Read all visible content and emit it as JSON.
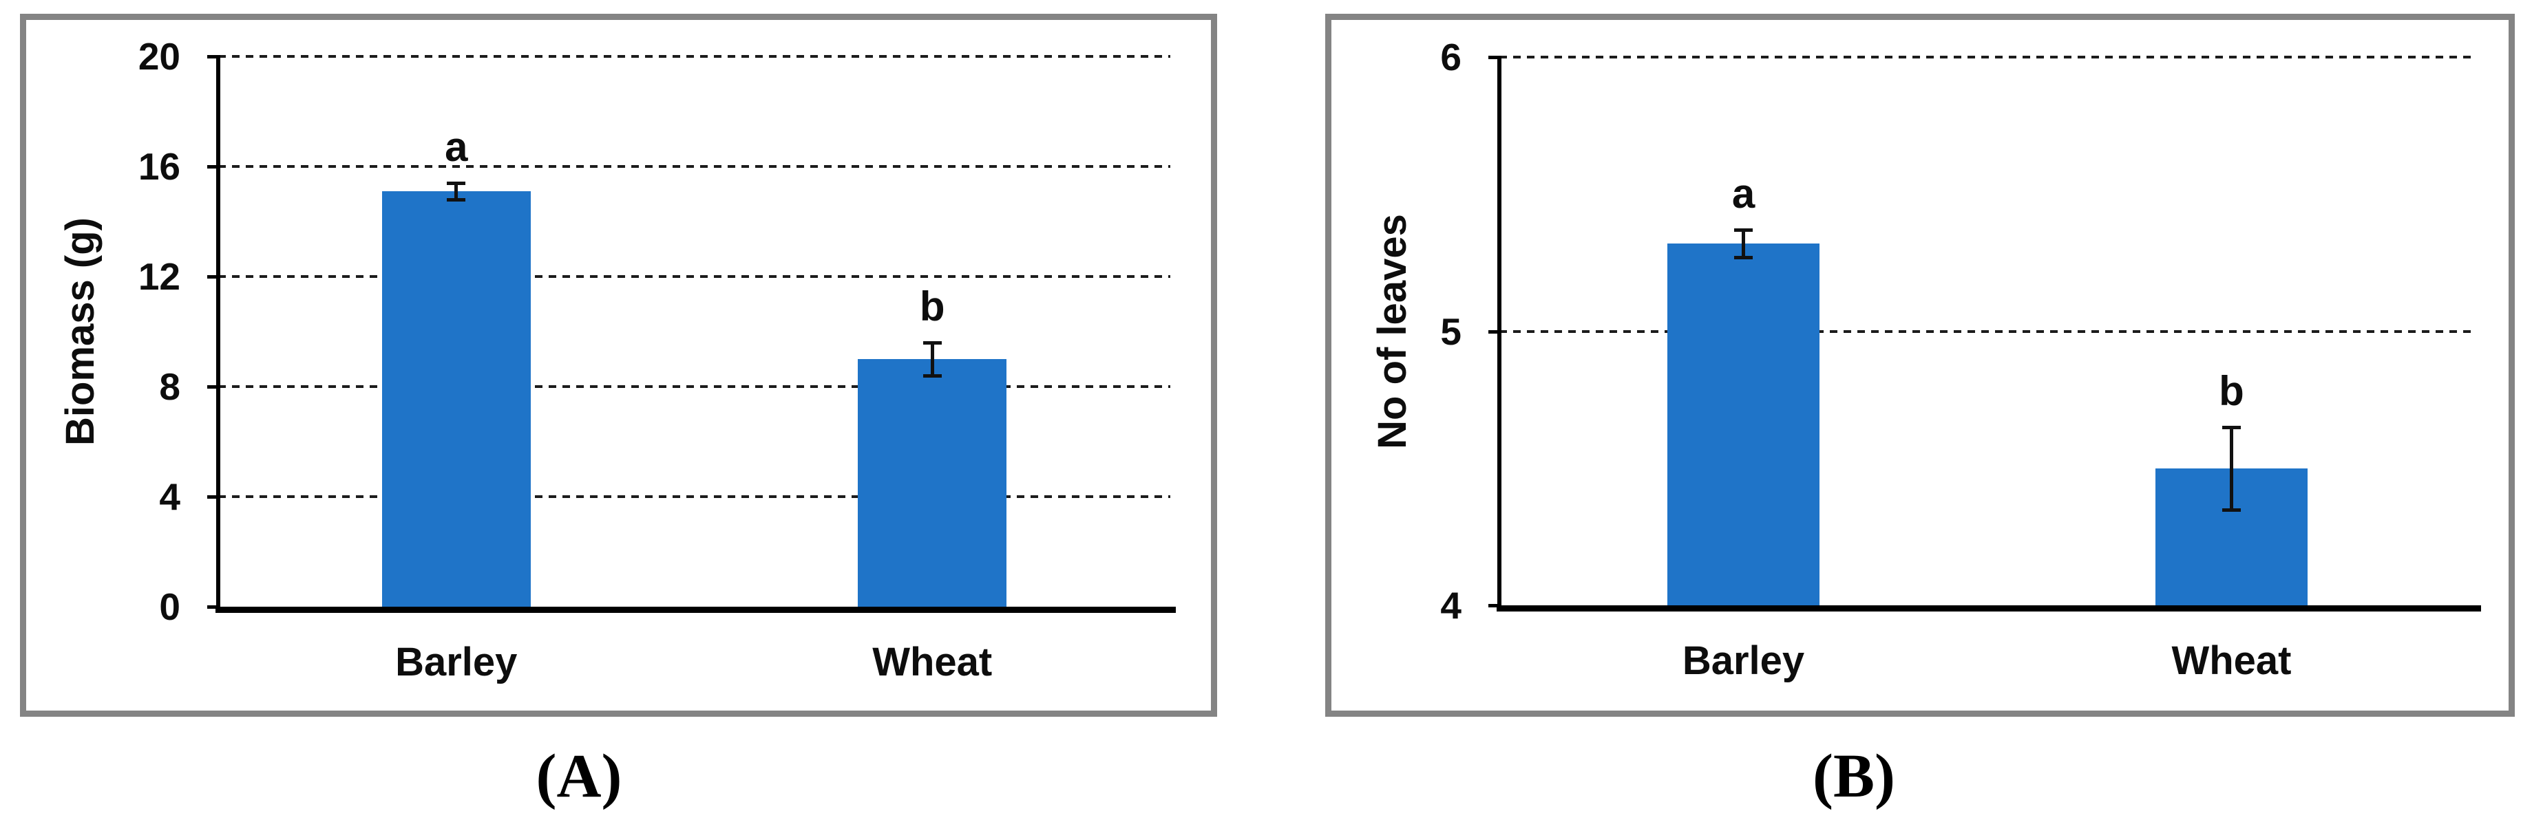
{
  "figure": {
    "caption_a": "(A)",
    "caption_b": "(B)"
  },
  "colors": {
    "bar_fill": "#1F74C8",
    "panel_border": "#848484",
    "gridline": "#1c1c1c",
    "axis": "#000000",
    "background": "#ffffff"
  },
  "chart_data": [
    {
      "type": "bar",
      "panel_letter": "A",
      "caption": "(A)",
      "title": "",
      "ylabel": "Biomass (g)",
      "xlabel": "",
      "categories": [
        "Barley",
        "Wheat"
      ],
      "values": [
        15.1,
        9.0
      ],
      "error_bars": [
        0.3,
        0.6
      ],
      "sig_letters": [
        "a",
        "b"
      ],
      "ylim": [
        0,
        20
      ],
      "yticks": [
        0,
        4,
        8,
        12,
        16,
        20
      ],
      "grid": "horizontal-dashed",
      "legend_position": "none"
    },
    {
      "type": "bar",
      "panel_letter": "B",
      "caption": "(B)",
      "title": "",
      "ylabel": "No of leaves",
      "xlabel": "",
      "categories": [
        "Barley",
        "Wheat"
      ],
      "values": [
        5.32,
        4.5
      ],
      "error_bars": [
        0.05,
        0.15
      ],
      "sig_letters": [
        "a",
        "b"
      ],
      "ylim": [
        4,
        6
      ],
      "yticks": [
        4,
        5,
        6
      ],
      "grid": "horizontal-dashed",
      "legend_position": "none"
    }
  ]
}
